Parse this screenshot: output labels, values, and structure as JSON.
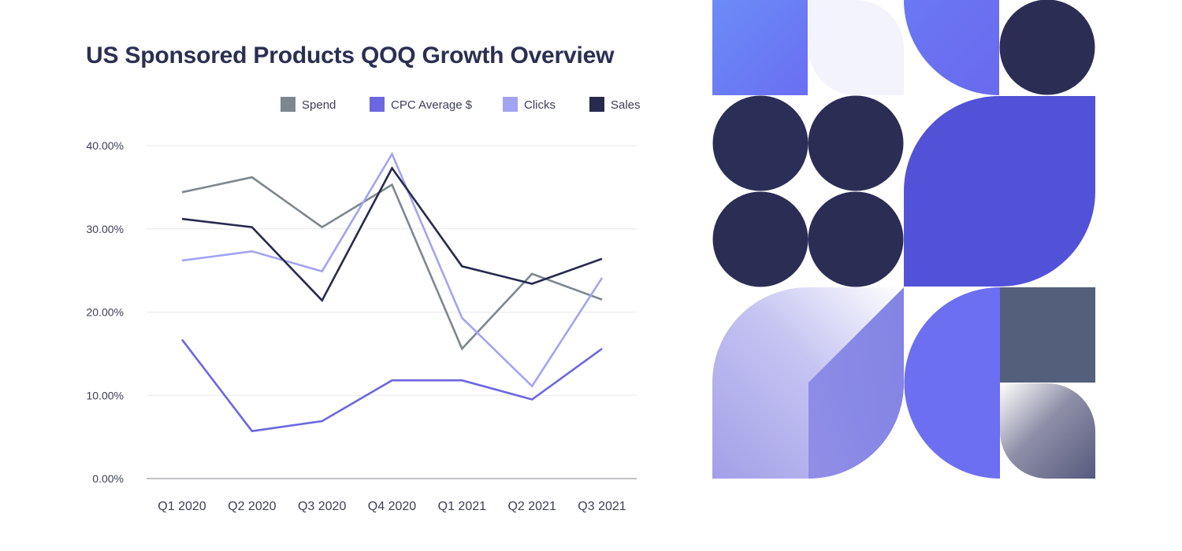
{
  "chart_data": {
    "type": "line",
    "title": "US Sponsored Products QOQ Growth Overview",
    "xlabel": "",
    "ylabel": "",
    "categories": [
      "Q1 2020",
      "Q2 2020",
      "Q3 2020",
      "Q4 2020",
      "Q1 2021",
      "Q2 2021",
      "Q3 2021"
    ],
    "ylim": [
      0,
      40
    ],
    "yticks": [
      0,
      10,
      20,
      30,
      40
    ],
    "ytick_labels": [
      "0.00%",
      "10.00%",
      "20.00%",
      "30.00%",
      "40.00%"
    ],
    "grid": true,
    "legend_position": "top-right",
    "series": [
      {
        "name": "Spend",
        "color": "#7d8790",
        "values": [
          34.4,
          36.2,
          30.2,
          35.3,
          15.6,
          24.6,
          21.5
        ]
      },
      {
        "name": "CPC Average $",
        "color": "#6c67e0",
        "values": [
          16.7,
          5.7,
          6.9,
          11.8,
          11.8,
          9.5,
          15.6
        ]
      },
      {
        "name": "Clicks",
        "color": "#a3a3f4",
        "values": [
          26.2,
          27.3,
          24.9,
          39.0,
          19.3,
          11.1,
          24.1
        ]
      },
      {
        "name": "Sales",
        "color": "#272a4d",
        "values": [
          31.2,
          30.2,
          21.4,
          37.3,
          25.5,
          23.4,
          26.4
        ]
      }
    ]
  },
  "art": {
    "colors": {
      "navy": "#2b2d55",
      "royal_purple": "#5252d8",
      "periwinkle": "#6c6ff2",
      "lavender": "#a4a3ee",
      "slate": "#545f7b",
      "pale": "#f3f3fb"
    }
  }
}
